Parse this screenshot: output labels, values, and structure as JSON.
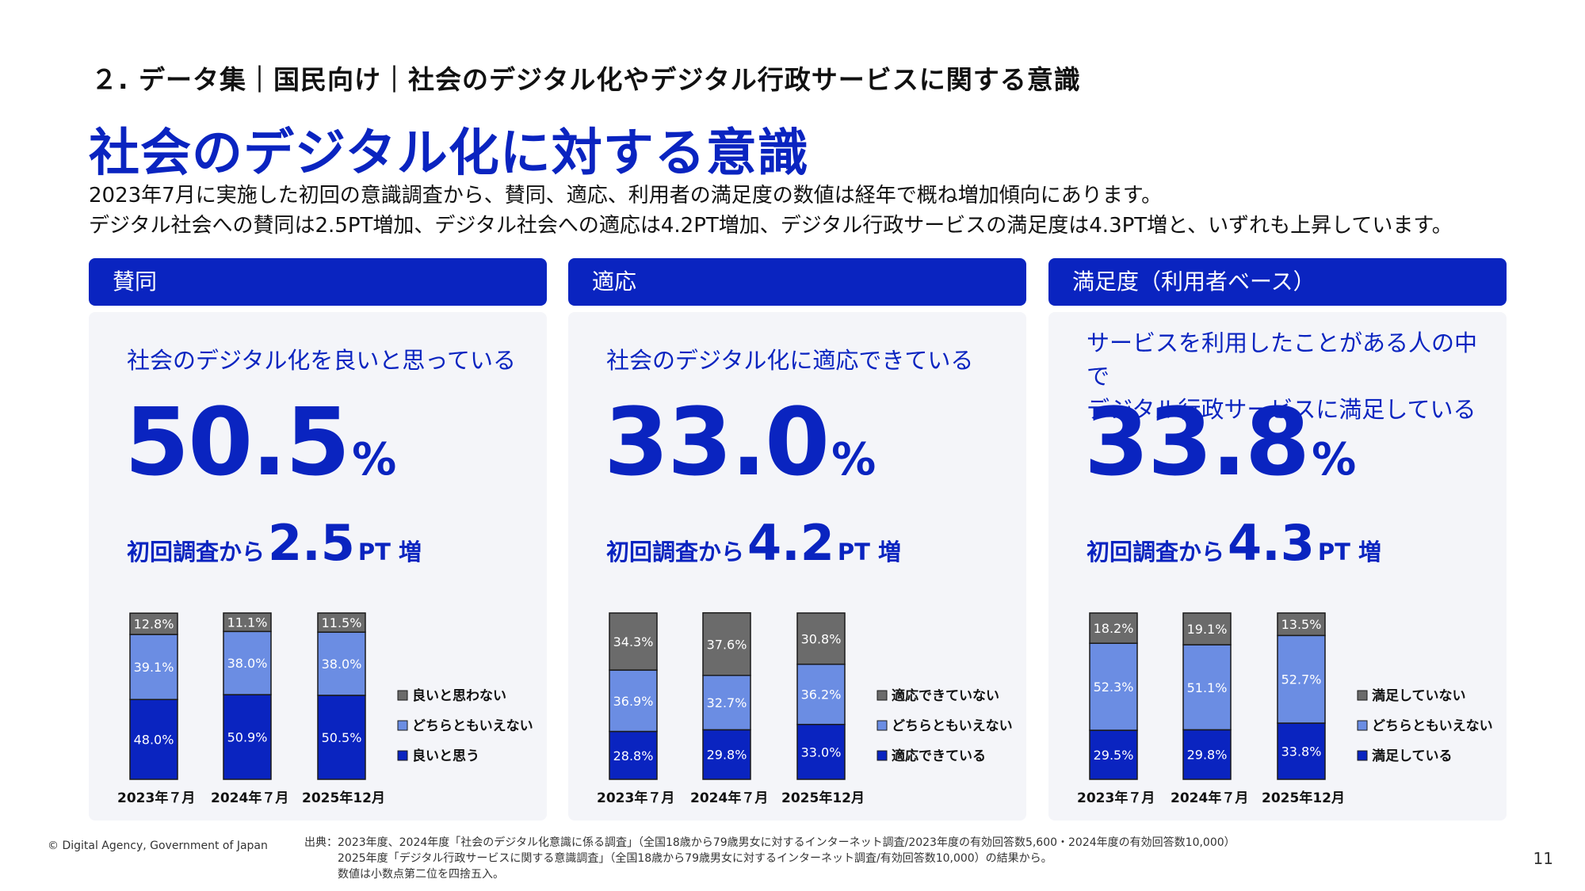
{
  "breadcrumb": "２. データ集｜国民向け｜社会のデジタル化やデジタル行政サービスに関する意識",
  "title": "社会のデジタル化に対する意識",
  "lead_lines": [
    "2023年7月に実施した初回の意識調査から、賛同、適応、利用者の満足度の数値は経年で概ね増加傾向にあります。",
    "デジタル社会への賛同は2.5PT増加、デジタル社会への適応は4.2PT増加、デジタル行政サービスの満足度は4.3PT増と、いずれも上昇しています。"
  ],
  "panels": [
    {
      "header": "賛同",
      "question": "社会のデジタル化を良いと思っている",
      "big_number": "50.5",
      "big_unit": "%",
      "delta_label": "初回調査から",
      "delta_value": "2.5",
      "delta_unit": "PT 増"
    },
    {
      "header": "適応",
      "question": "社会のデジタル化に適応できている",
      "big_number": "33.0",
      "big_unit": "%",
      "delta_label": "初回調査から",
      "delta_value": "4.2",
      "delta_unit": "PT 増"
    },
    {
      "header": "満足度（利用者ベース）",
      "question": "サービスを利用したことがある人の中で\nデジタル行政サービスに満足している",
      "big_number": "33.8",
      "big_unit": "%",
      "delta_label": "初回調査から",
      "delta_value": "4.3",
      "delta_unit": "PT 増"
    }
  ],
  "chart_data": [
    {
      "type": "bar",
      "stacked": true,
      "categories": [
        "2023年７月",
        "2024年７月",
        "2025年12月"
      ],
      "series": [
        {
          "name": "良いと思う",
          "color": "#0a24c0",
          "values": [
            48.0,
            50.9,
            50.5
          ],
          "labels": [
            "48.0%",
            "50.9%",
            "50.5%"
          ]
        },
        {
          "name": "どちらともいえない",
          "color": "#6b8de3",
          "values": [
            39.1,
            38.0,
            38.0
          ],
          "labels": [
            "39.1%",
            "38.0%",
            "38.0%"
          ]
        },
        {
          "name": "良いと思わない",
          "color": "#6b6b6b",
          "values": [
            12.8,
            11.1,
            11.5
          ],
          "labels": [
            "12.8%",
            "11.1%",
            "11.5%"
          ]
        }
      ]
    },
    {
      "type": "bar",
      "stacked": true,
      "categories": [
        "2023年７月",
        "2024年７月",
        "2025年12月"
      ],
      "series": [
        {
          "name": "適応できている",
          "color": "#0a24c0",
          "values": [
            28.8,
            29.8,
            33.0
          ],
          "labels": [
            "28.8%",
            "29.8%",
            "33.0%"
          ]
        },
        {
          "name": "どちらともいえない",
          "color": "#6b8de3",
          "values": [
            36.9,
            32.7,
            36.2
          ],
          "labels": [
            "36.9%",
            "32.7%",
            "36.2%"
          ]
        },
        {
          "name": "適応できていない",
          "color": "#6b6b6b",
          "values": [
            34.3,
            37.6,
            30.8
          ],
          "labels": [
            "34.3%",
            "37.6%",
            "30.8%"
          ]
        }
      ]
    },
    {
      "type": "bar",
      "stacked": true,
      "categories": [
        "2023年７月",
        "2024年７月",
        "2025年12月"
      ],
      "series": [
        {
          "name": "満足している",
          "color": "#0a24c0",
          "values": [
            29.5,
            29.8,
            33.8
          ],
          "labels": [
            "29.5%",
            "29.8%",
            "33.8%"
          ]
        },
        {
          "name": "どちらともいえない",
          "color": "#6b8de3",
          "values": [
            52.3,
            51.1,
            52.7
          ],
          "labels": [
            "52.3%",
            "51.1%",
            "52.7%"
          ]
        },
        {
          "name": "満足していない",
          "color": "#6b6b6b",
          "values": [
            18.2,
            19.1,
            13.5
          ],
          "labels": [
            "18.2%",
            "19.1%",
            "13.5%"
          ]
        }
      ]
    }
  ],
  "footer": {
    "copyright": "© Digital Agency, Government of Japan",
    "source": "出典：2023年度、2024年度「社会のデジタル化意識に係る調査」（全国18歳から79歳男女に対するインターネット調査/2023年度の有効回答数5,600・2024年度の有効回答数10,000）\n　　　2025年度「デジタル行政サービスに関する意識調査」（全国18歳から79歳男女に対するインターネット調査/有効回答数10,000）の結果から。\n　　　数値は小数点第二位を四捨五入。",
    "page": "11"
  }
}
